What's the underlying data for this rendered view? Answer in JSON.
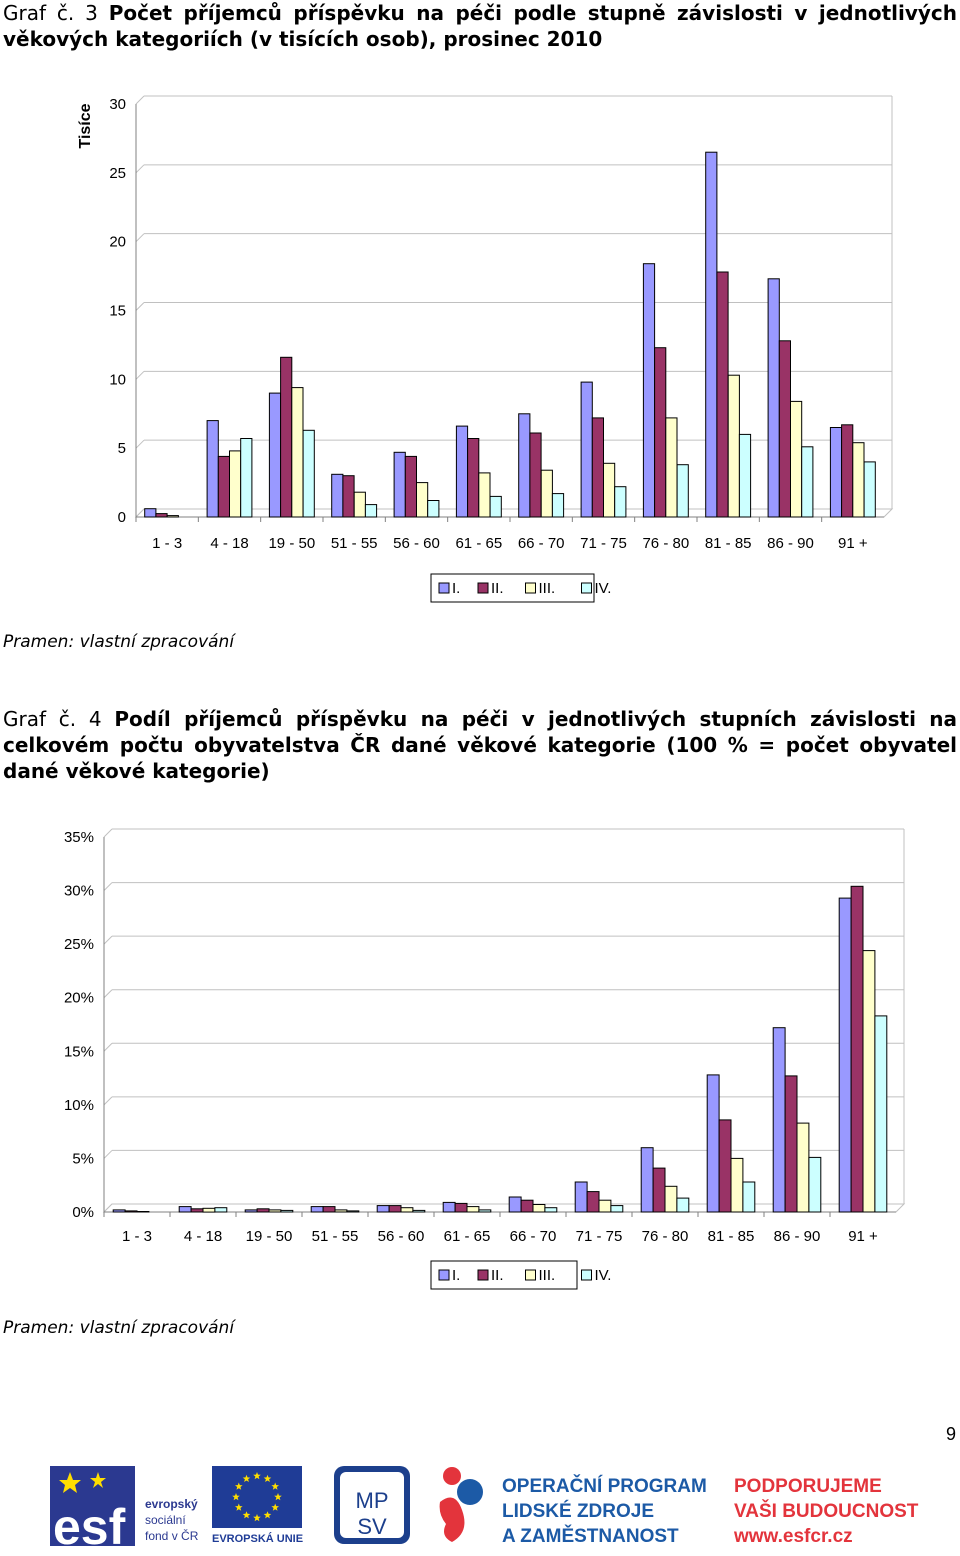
{
  "heading1": {
    "prefix": "Graf č. 3",
    "title": "Počet příjemců příspěvku na péči podle stupně závislosti v jednotlivých věkových kategoriích (v tisících osob), prosinec 2010"
  },
  "heading2": {
    "prefix": "Graf č. 4",
    "title": "Podíl příjemců příspěvku na péči v jednotlivých stupních závislosti na celkovém počtu obyvatelstva ČR dané věkové kategorie (100 % = počet obyvatel dané věkové kategorie)"
  },
  "source1": "Pramen: vlastní zpracování",
  "source2": "Pramen: vlastní zpracování",
  "page_number": "9",
  "colors": {
    "series": [
      "#9999ff",
      "#993366",
      "#ffffcc",
      "#ccffff"
    ],
    "grid": "#c0c0c0"
  },
  "chart_data": [
    {
      "type": "bar",
      "ylabel": "Tisíce",
      "ylim": [
        0,
        30
      ],
      "yticks": [
        "0",
        "5",
        "10",
        "15",
        "20",
        "25",
        "30"
      ],
      "grid": true,
      "legend_position": "bottom",
      "categories": [
        "1 - 3",
        "4 - 18",
        "19 - 50",
        "51 - 55",
        "56 - 60",
        "61 - 65",
        "66 - 70",
        "71 - 75",
        "76 - 80",
        "81 - 85",
        "86 - 90",
        "91 +"
      ],
      "series": [
        {
          "name": "I.",
          "values": [
            0.6,
            7.0,
            9.0,
            3.1,
            4.7,
            6.6,
            7.5,
            9.8,
            18.4,
            26.5,
            17.3,
            6.5
          ]
        },
        {
          "name": "II.",
          "values": [
            0.25,
            4.4,
            11.6,
            3.0,
            4.4,
            5.7,
            6.1,
            7.2,
            12.3,
            17.8,
            12.8,
            6.7
          ]
        },
        {
          "name": "III.",
          "values": [
            0.1,
            4.8,
            9.4,
            1.8,
            2.5,
            3.2,
            3.4,
            3.9,
            7.2,
            10.3,
            8.4,
            5.4
          ]
        },
        {
          "name": "IV.",
          "values": [
            0.0,
            5.7,
            6.3,
            0.9,
            1.2,
            1.5,
            1.7,
            2.2,
            3.8,
            6.0,
            5.1,
            4.0
          ]
        }
      ]
    },
    {
      "type": "bar",
      "ylim": [
        0,
        35
      ],
      "yticks": [
        "0%",
        "5%",
        "10%",
        "15%",
        "20%",
        "25%",
        "30%",
        "35%"
      ],
      "grid": true,
      "legend_position": "bottom",
      "categories": [
        "1 - 3",
        "4 - 18",
        "19 - 50",
        "51 - 55",
        "56 - 60",
        "61 - 65",
        "66 - 70",
        "71 - 75",
        "76 - 80",
        "81 - 85",
        "86 - 90",
        "91 +"
      ],
      "series": [
        {
          "name": "I.",
          "values": [
            0.2,
            0.5,
            0.2,
            0.5,
            0.6,
            0.9,
            1.4,
            2.8,
            6.0,
            12.8,
            17.2,
            29.3
          ]
        },
        {
          "name": "II.",
          "values": [
            0.1,
            0.3,
            0.3,
            0.5,
            0.6,
            0.8,
            1.1,
            1.9,
            4.1,
            8.6,
            12.7,
            30.4
          ]
        },
        {
          "name": "III.",
          "values": [
            0.05,
            0.35,
            0.2,
            0.2,
            0.4,
            0.5,
            0.7,
            1.1,
            2.4,
            5.0,
            8.3,
            24.4
          ]
        },
        {
          "name": "IV.",
          "values": [
            0.0,
            0.4,
            0.15,
            0.1,
            0.15,
            0.2,
            0.4,
            0.6,
            1.3,
            2.8,
            5.1,
            18.3
          ]
        }
      ]
    }
  ],
  "footer": {
    "esf_text": [
      "evropský",
      "sociální",
      "fond v ČR"
    ],
    "esf_letters": "esf",
    "eu_text": "EVROPSKÁ UNIE",
    "mpsv_text": "MPSV",
    "program_text": [
      "OPERAČNÍ PROGRAM",
      "LIDSKÉ ZDROJE",
      "A ZAMĚSTNANOST"
    ],
    "slogan_text": [
      "PODPORUJEME",
      "VAŠI BUDOUCNOST"
    ],
    "url_text": "www.esfcr.cz"
  }
}
